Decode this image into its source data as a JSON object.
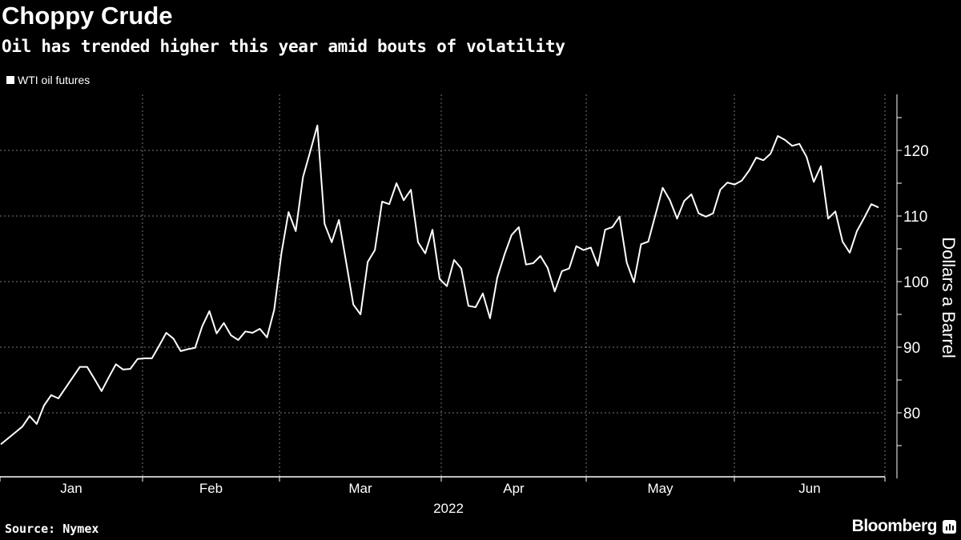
{
  "chart_data": {
    "type": "line",
    "title": "Choppy Crude",
    "subtitle": "Oil has trended higher this year amid bouts of volatility",
    "legend": [
      "WTI oil futures"
    ],
    "legend_placement": "top-left",
    "xlabel": "2022",
    "ylabel": "Dollars a Barrel",
    "x_ticks": [
      "Jan",
      "Feb",
      "Mar",
      "Apr",
      "May",
      "Jun"
    ],
    "y_ticks": [
      80,
      90,
      100,
      110,
      120
    ],
    "ylim": [
      72.5,
      127.5
    ],
    "grid": true,
    "series": [
      {
        "name": "WTI oil futures",
        "color": "#ffffff",
        "values": [
          75.2,
          76.1,
          77.0,
          77.9,
          79.5,
          78.3,
          81.1,
          82.7,
          82.2,
          83.8,
          85.4,
          87.0,
          87.0,
          85.2,
          83.3,
          85.4,
          87.4,
          86.6,
          86.7,
          88.2,
          88.3,
          88.3,
          90.2,
          92.2,
          91.3,
          89.4,
          89.7,
          89.9,
          93.2,
          95.5,
          92.1,
          93.7,
          91.8,
          91.1,
          92.4,
          92.2,
          92.8,
          91.5,
          95.7,
          104.3,
          110.6,
          107.7,
          115.9,
          119.8,
          123.8,
          108.8,
          106.0,
          109.4,
          103.0,
          96.5,
          95.0,
          103.0,
          104.8,
          112.2,
          111.8,
          115.0,
          112.4,
          114.0,
          106.0,
          104.3,
          107.9,
          100.4,
          99.3,
          103.3,
          102.0,
          96.3,
          96.1,
          98.2,
          94.4,
          100.6,
          104.1,
          107.1,
          108.3,
          102.6,
          102.8,
          103.9,
          102.1,
          98.5,
          101.6,
          102.0,
          105.4,
          104.8,
          105.2,
          102.4,
          107.9,
          108.3,
          109.9,
          102.9,
          99.9,
          105.7,
          106.1,
          110.2,
          114.3,
          112.4,
          109.6,
          112.3,
          113.3,
          110.4,
          109.9,
          110.4,
          114.0,
          115.1,
          114.8,
          115.4,
          116.9,
          118.9,
          118.5,
          119.5,
          122.2,
          121.6,
          120.7,
          121.0,
          119.0,
          115.2,
          117.6,
          109.6,
          110.7,
          106.1,
          104.4,
          107.7,
          109.7,
          111.8,
          111.3
        ]
      }
    ]
  },
  "footer": {
    "source": "Source: Nymex",
    "brand": "Bloomberg"
  }
}
